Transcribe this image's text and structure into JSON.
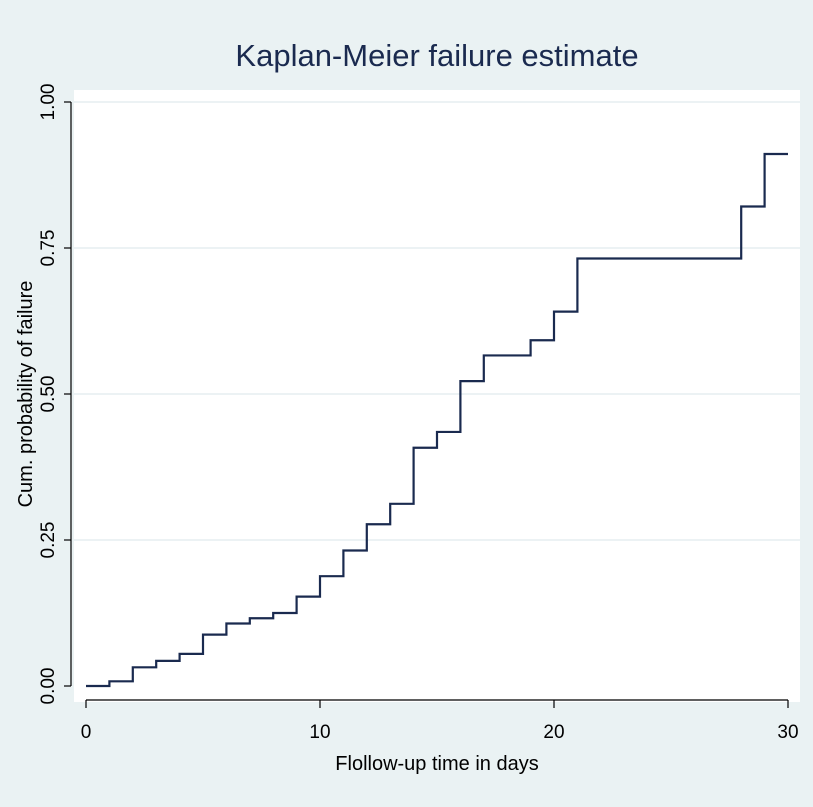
{
  "chart_data": {
    "type": "line",
    "step": true,
    "title": "Kaplan-Meier failure estimate",
    "xlabel": "Flollow-up time in days",
    "ylabel": "Cum. probability of failure",
    "xlim": [
      0,
      30
    ],
    "ylim": [
      0,
      1
    ],
    "xticks": [
      0,
      10,
      20,
      30
    ],
    "xtick_labels": [
      "0",
      "10",
      "20",
      "30"
    ],
    "yticks": [
      0,
      0.25,
      0.5,
      0.75,
      1
    ],
    "ytick_labels": [
      "0.00",
      "0.25",
      "0.50",
      "0.75",
      "1.00"
    ],
    "grid": true,
    "legend": "none",
    "colors": {
      "line": "#1a2a4f",
      "plot_bg": "#ffffff",
      "outer_bg": "#eaf2f3",
      "grid": "#e6eef0",
      "title": "#1a2a4f"
    },
    "series": [
      {
        "x": [
          0,
          1,
          2,
          3,
          4,
          5,
          6,
          7,
          8,
          9,
          10,
          11,
          12,
          13,
          14,
          15,
          16,
          17,
          19,
          20,
          21,
          28,
          29,
          30
        ],
        "y": [
          0.0,
          0.008,
          0.032,
          0.043,
          0.055,
          0.088,
          0.107,
          0.116,
          0.125,
          0.153,
          0.188,
          0.232,
          0.277,
          0.312,
          0.408,
          0.435,
          0.522,
          0.566,
          0.592,
          0.641,
          0.732,
          0.821,
          0.911,
          0.911
        ]
      }
    ]
  }
}
